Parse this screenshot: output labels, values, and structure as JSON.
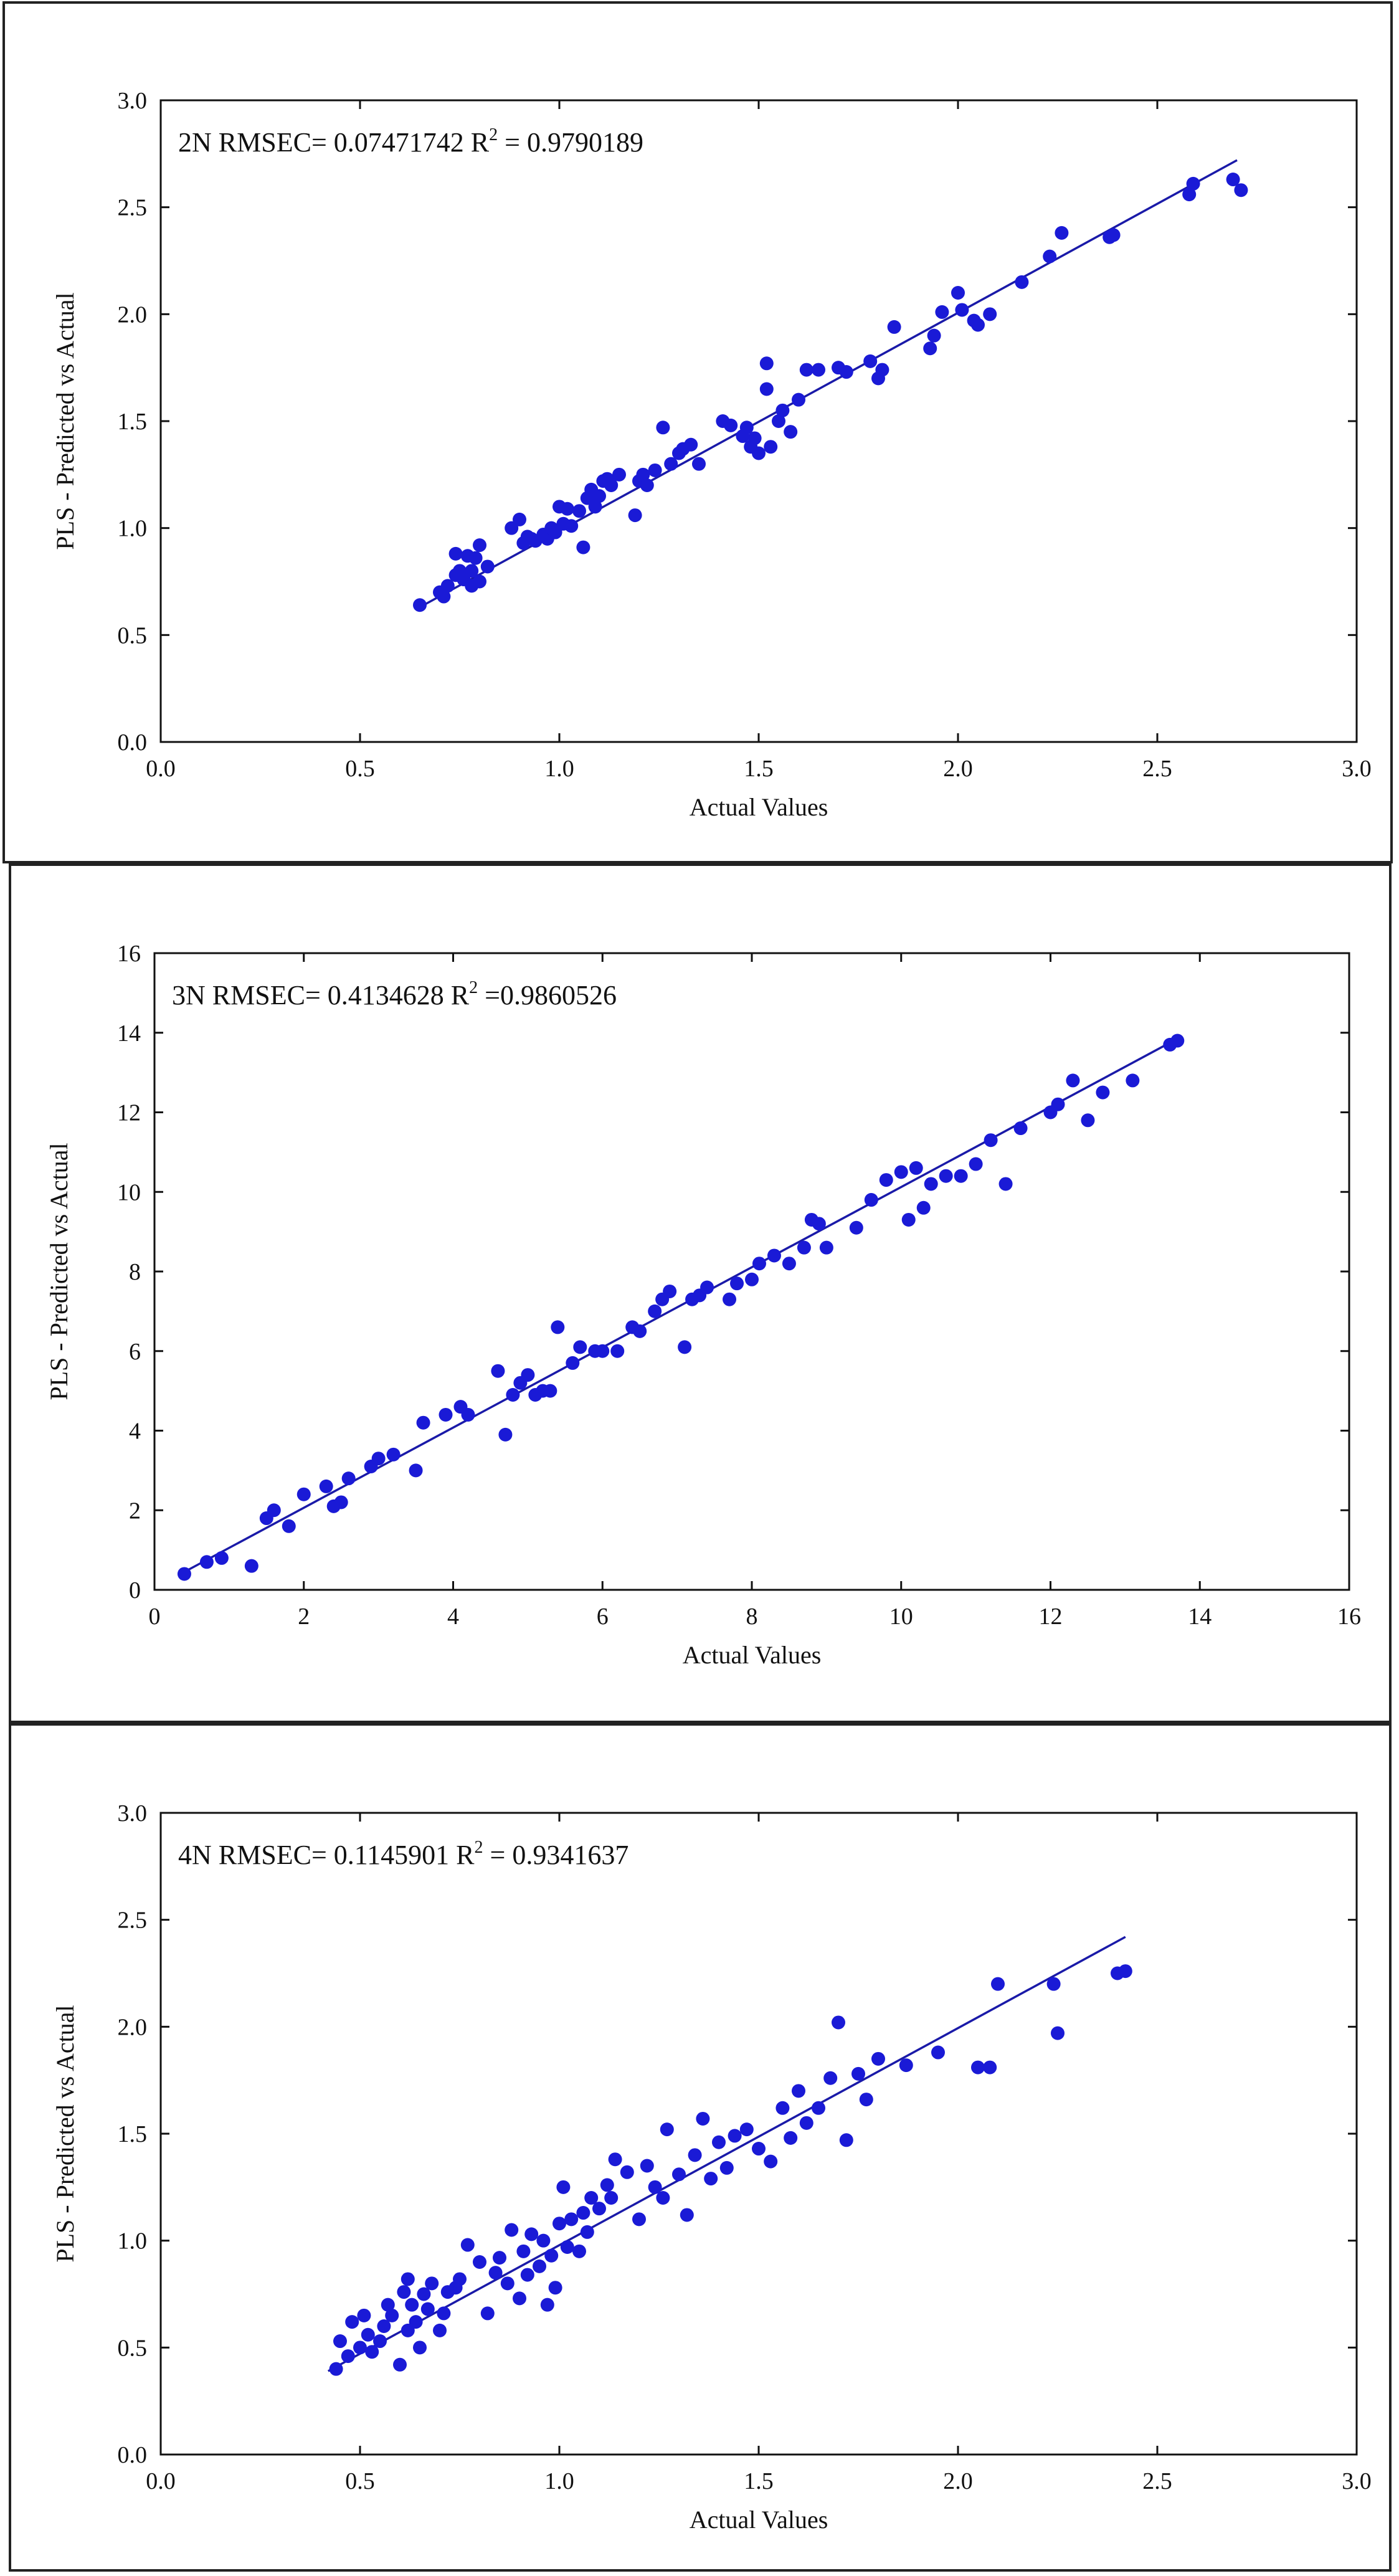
{
  "chart_data": [
    {
      "type": "scatter",
      "title": "",
      "xlabel": "Actual Values",
      "ylabel": "PLS - Predicted vs Actual",
      "xlim": [
        0.0,
        3.0
      ],
      "ylim": [
        0.0,
        3.0
      ],
      "xticks": [
        "0.0",
        "0.5",
        "1.0",
        "1.5",
        "2.0",
        "2.5",
        "3.0"
      ],
      "yticks": [
        "0.0",
        "0.5",
        "1.0",
        "1.5",
        "2.0",
        "2.5",
        "3.0"
      ],
      "grid": false,
      "annotation": {
        "label": "2N",
        "rmsec_text": "RMSEC= 0.07471742",
        "r2_label": "R",
        "r2_exp": "2",
        "r2_value": "= 0.9790189"
      },
      "point_color": "#1a1ad6",
      "line_color": "#1a1aa8",
      "fit_line": {
        "x": [
          0.64,
          2.7
        ],
        "y": [
          0.62,
          2.72
        ]
      },
      "series": [
        {
          "x": [
            0.65,
            0.7,
            0.71,
            0.72,
            0.74,
            0.74,
            0.75,
            0.76,
            0.77,
            0.78,
            0.78,
            0.79,
            0.8,
            0.8,
            0.82,
            0.88,
            0.9,
            0.91,
            0.92,
            0.93,
            0.94,
            0.96,
            0.97,
            0.98,
            0.99,
            1.0,
            1.01,
            1.02,
            1.03,
            1.05,
            1.06,
            1.07,
            1.08,
            1.09,
            1.1,
            1.11,
            1.12,
            1.13,
            1.15,
            1.19,
            1.2,
            1.21,
            1.22,
            1.24,
            1.26,
            1.28,
            1.3,
            1.31,
            1.33,
            1.35,
            1.41,
            1.43,
            1.46,
            1.47,
            1.48,
            1.49,
            1.5,
            1.52,
            1.52,
            1.53,
            1.55,
            1.56,
            1.58,
            1.6,
            1.62,
            1.65,
            1.7,
            1.72,
            1.78,
            1.8,
            1.81,
            1.84,
            1.93,
            1.94,
            1.96,
            2.0,
            2.01,
            2.04,
            2.05,
            2.08,
            2.16,
            2.23,
            2.26,
            2.38,
            2.39,
            2.58,
            2.59,
            2.69,
            2.71
          ],
          "y": [
            0.64,
            0.7,
            0.68,
            0.73,
            0.78,
            0.88,
            0.8,
            0.76,
            0.87,
            0.73,
            0.8,
            0.86,
            0.75,
            0.92,
            0.82,
            1.0,
            1.04,
            0.93,
            0.96,
            0.95,
            0.94,
            0.97,
            0.95,
            1.0,
            0.98,
            1.1,
            1.02,
            1.09,
            1.01,
            1.08,
            0.91,
            1.14,
            1.18,
            1.1,
            1.15,
            1.22,
            1.23,
            1.2,
            1.25,
            1.06,
            1.22,
            1.25,
            1.2,
            1.27,
            1.47,
            1.3,
            1.35,
            1.37,
            1.39,
            1.3,
            1.5,
            1.48,
            1.43,
            1.47,
            1.38,
            1.42,
            1.35,
            1.77,
            1.65,
            1.38,
            1.5,
            1.55,
            1.45,
            1.6,
            1.74,
            1.74,
            1.75,
            1.73,
            1.78,
            1.7,
            1.74,
            1.94,
            1.84,
            1.9,
            2.01,
            2.1,
            2.02,
            1.97,
            1.95,
            2.0,
            2.15,
            2.27,
            2.38,
            2.36,
            2.37,
            2.56,
            2.61,
            2.63,
            2.58
          ]
        }
      ]
    },
    {
      "type": "scatter",
      "title": "",
      "xlabel": "Actual Values",
      "ylabel": "PLS - Predicted vs Actual",
      "xlim": [
        0,
        16
      ],
      "ylim": [
        0,
        16
      ],
      "xticks": [
        "0",
        "2",
        "4",
        "6",
        "8",
        "10",
        "12",
        "14",
        "16"
      ],
      "yticks": [
        "0",
        "2",
        "4",
        "6",
        "8",
        "10",
        "12",
        "14",
        "16"
      ],
      "grid": false,
      "annotation": {
        "label": "3N",
        "rmsec_text": "RMSEC= 0.4134628",
        "r2_label": "R",
        "r2_exp": "2",
        "r2_value": "=0.9860526"
      },
      "point_color": "#1a1ad6",
      "line_color": "#1a1aa8",
      "fit_line": {
        "x": [
          0.4,
          13.7
        ],
        "y": [
          0.45,
          13.85
        ]
      },
      "series": [
        {
          "x": [
            0.4,
            0.7,
            0.9,
            1.3,
            1.5,
            1.6,
            1.8,
            2.0,
            2.3,
            2.4,
            2.5,
            2.6,
            2.9,
            3.0,
            3.2,
            3.5,
            3.6,
            3.9,
            4.1,
            4.2,
            4.6,
            4.7,
            4.8,
            4.9,
            5.0,
            5.1,
            5.2,
            5.3,
            5.4,
            5.6,
            5.7,
            5.9,
            6.0,
            6.2,
            6.4,
            6.5,
            6.7,
            6.8,
            6.9,
            7.1,
            7.2,
            7.3,
            7.4,
            7.7,
            7.8,
            8.0,
            8.1,
            8.3,
            8.5,
            8.7,
            8.8,
            8.9,
            9.0,
            9.4,
            9.6,
            9.8,
            10.0,
            10.1,
            10.2,
            10.3,
            10.4,
            10.6,
            10.8,
            11.0,
            11.2,
            11.4,
            11.6,
            12.0,
            12.1,
            12.3,
            12.5,
            12.7,
            13.1,
            13.6,
            13.7
          ],
          "y": [
            0.4,
            0.7,
            0.8,
            0.6,
            1.8,
            2.0,
            1.6,
            2.4,
            2.6,
            2.1,
            2.2,
            2.8,
            3.1,
            3.3,
            3.4,
            3.0,
            4.2,
            4.4,
            4.6,
            4.4,
            5.5,
            3.9,
            4.9,
            5.2,
            5.4,
            4.9,
            5.0,
            5.0,
            6.6,
            5.7,
            6.1,
            6.0,
            6.0,
            6.0,
            6.6,
            6.5,
            7.0,
            7.3,
            7.5,
            6.1,
            7.3,
            7.4,
            7.6,
            7.3,
            7.7,
            7.8,
            8.2,
            8.4,
            8.2,
            8.6,
            9.3,
            9.2,
            8.6,
            9.1,
            9.8,
            10.3,
            10.5,
            9.3,
            10.6,
            9.6,
            10.2,
            10.4,
            10.4,
            10.7,
            11.3,
            10.2,
            11.6,
            12.0,
            12.2,
            12.8,
            11.8,
            12.5,
            12.8,
            13.7,
            13.8
          ]
        }
      ]
    },
    {
      "type": "scatter",
      "title": "",
      "xlabel": "Actual Values",
      "ylabel": "PLS - Predicted vs Actual",
      "xlim": [
        0.0,
        3.0
      ],
      "ylim": [
        0.0,
        3.0
      ],
      "xticks": [
        "0.0",
        "0.5",
        "1.0",
        "1.5",
        "2.0",
        "2.5",
        "3.0"
      ],
      "yticks": [
        "0.0",
        "0.5",
        "1.0",
        "1.5",
        "2.0",
        "2.5",
        "3.0"
      ],
      "grid": false,
      "annotation": {
        "label": "4N",
        "rmsec_text": "RMSEC= 0.1145901",
        "r2_label": "R",
        "r2_exp": "2",
        "r2_value": "= 0.9341637"
      },
      "point_color": "#1a1ad6",
      "line_color": "#1a1aa8",
      "fit_line": {
        "x": [
          0.42,
          2.42
        ],
        "y": [
          0.39,
          2.42
        ]
      },
      "series": [
        {
          "x": [
            0.44,
            0.45,
            0.47,
            0.48,
            0.5,
            0.51,
            0.52,
            0.53,
            0.55,
            0.56,
            0.57,
            0.58,
            0.6,
            0.61,
            0.62,
            0.62,
            0.63,
            0.64,
            0.65,
            0.66,
            0.67,
            0.68,
            0.7,
            0.71,
            0.72,
            0.74,
            0.75,
            0.77,
            0.8,
            0.82,
            0.84,
            0.85,
            0.87,
            0.88,
            0.9,
            0.91,
            0.92,
            0.93,
            0.95,
            0.96,
            0.97,
            0.98,
            0.99,
            1.0,
            1.01,
            1.02,
            1.03,
            1.05,
            1.06,
            1.07,
            1.08,
            1.1,
            1.12,
            1.13,
            1.14,
            1.17,
            1.2,
            1.22,
            1.24,
            1.26,
            1.27,
            1.3,
            1.32,
            1.34,
            1.36,
            1.38,
            1.4,
            1.42,
            1.44,
            1.47,
            1.5,
            1.53,
            1.56,
            1.58,
            1.6,
            1.62,
            1.65,
            1.68,
            1.7,
            1.72,
            1.75,
            1.77,
            1.8,
            1.87,
            1.95,
            2.05,
            2.08,
            2.1,
            2.24,
            2.25,
            2.4,
            2.42
          ],
          "y": [
            0.4,
            0.53,
            0.46,
            0.62,
            0.5,
            0.65,
            0.56,
            0.48,
            0.53,
            0.6,
            0.7,
            0.65,
            0.42,
            0.76,
            0.58,
            0.82,
            0.7,
            0.62,
            0.5,
            0.75,
            0.68,
            0.8,
            0.58,
            0.66,
            0.76,
            0.78,
            0.82,
            0.98,
            0.9,
            0.66,
            0.85,
            0.92,
            0.8,
            1.05,
            0.73,
            0.95,
            0.84,
            1.03,
            0.88,
            1.0,
            0.7,
            0.93,
            0.78,
            1.08,
            1.25,
            0.97,
            1.1,
            0.95,
            1.13,
            1.04,
            1.2,
            1.15,
            1.26,
            1.2,
            1.38,
            1.32,
            1.1,
            1.35,
            1.25,
            1.2,
            1.52,
            1.31,
            1.12,
            1.4,
            1.57,
            1.29,
            1.46,
            1.34,
            1.49,
            1.52,
            1.43,
            1.37,
            1.62,
            1.48,
            1.7,
            1.55,
            1.62,
            1.76,
            2.02,
            1.47,
            1.78,
            1.66,
            1.85,
            1.82,
            1.88,
            1.81,
            1.81,
            2.2,
            2.2,
            1.97,
            2.25,
            2.26
          ]
        }
      ]
    }
  ]
}
